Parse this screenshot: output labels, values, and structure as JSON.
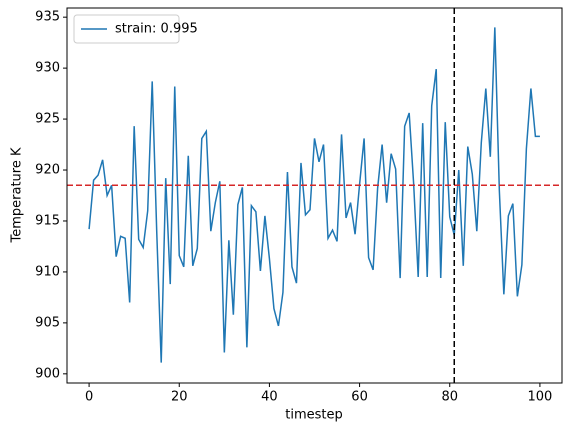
{
  "chart_data": {
    "type": "line",
    "x_label": "timestep",
    "y_label": "Temperature K",
    "x": [
      0,
      1,
      2,
      3,
      4,
      5,
      6,
      7,
      8,
      9,
      10,
      11,
      12,
      13,
      14,
      15,
      16,
      17,
      18,
      19,
      20,
      21,
      22,
      23,
      24,
      25,
      26,
      27,
      28,
      29,
      30,
      31,
      32,
      33,
      34,
      35,
      36,
      37,
      38,
      39,
      40,
      41,
      42,
      43,
      44,
      45,
      46,
      47,
      48,
      49,
      50,
      51,
      52,
      53,
      54,
      55,
      56,
      57,
      58,
      59,
      60,
      61,
      62,
      63,
      64,
      65,
      66,
      67,
      68,
      69,
      70,
      71,
      72,
      73,
      74,
      75,
      76,
      77,
      78,
      79,
      80,
      81,
      82,
      83,
      84,
      85,
      86,
      87,
      88,
      89,
      90,
      91,
      92,
      93,
      94,
      95,
      96,
      97,
      98,
      99,
      100
    ],
    "series": [
      {
        "name": "strain: 0.995",
        "color": "#1f77b4",
        "values": [
          914.2,
          919,
          919.5,
          921,
          917.5,
          918.5,
          911.5,
          913.5,
          913.3,
          907,
          924.3,
          913.2,
          912.4,
          916,
          928.7,
          914,
          901.1,
          919.2,
          908.8,
          928.2,
          911.6,
          910.5,
          921.4,
          910.6,
          912.3,
          923.1,
          923.8,
          914,
          916.8,
          918.9,
          902.1,
          913.1,
          905.8,
          916.6,
          918.3,
          902.6,
          916.5,
          915.9,
          910.1,
          915.5,
          911.3,
          906.4,
          904.7,
          908,
          919.8,
          910.5,
          908.9,
          920.7,
          915.6,
          916.1,
          923.1,
          920.8,
          922.5,
          913.3,
          914.1,
          913,
          923.5,
          915.3,
          916.8,
          913.7,
          918.6,
          923.1,
          911.4,
          910.2,
          918.2,
          922.5,
          916.8,
          921.6,
          920.1,
          909.4,
          924.3,
          925.6,
          918.6,
          909.5,
          924.6,
          909.5,
          926.3,
          929.9,
          909.4,
          924.7,
          915.4,
          913.6,
          920,
          910.6,
          922.3,
          919.6,
          914,
          922.7,
          928,
          921.3,
          934,
          918,
          907.8,
          915.5,
          916.7,
          907.6,
          910.7,
          922.1,
          928,
          923.3,
          923.3
        ]
      }
    ],
    "hline": 918.5,
    "hline_color": "#d62728",
    "vline": 81,
    "vline_color": "#000000",
    "xlim": [
      -4.9,
      104.9
    ],
    "ylim": [
      899.1,
      935.9
    ],
    "xticks": [
      0,
      20,
      40,
      60,
      80,
      100
    ],
    "yticks": [
      900,
      905,
      910,
      915,
      920,
      925,
      930,
      935
    ],
    "legend": "upper left"
  }
}
